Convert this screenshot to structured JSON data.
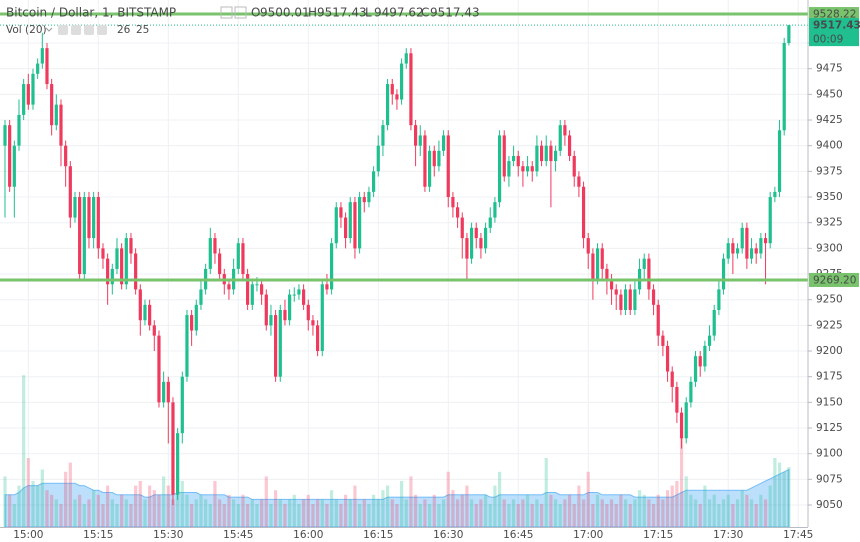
{
  "chart_data": {
    "type": "candlestick",
    "title": "Bitcoin / Dollar, 1, BITSTAMP",
    "ohlc_labels": [
      "O",
      "H",
      "L",
      "C"
    ],
    "volume_label": "Vol (20)",
    "up_color": "#1fbf8f",
    "down_color": "#ef3a5d",
    "ma_color": "#2196f3",
    "open": [
      9400,
      9420,
      9360,
      9400,
      9430,
      9460,
      9440,
      9470,
      9480,
      9495,
      9460,
      9420,
      9440,
      9400,
      9380,
      9330,
      9350,
      9275,
      9350,
      9310,
      9350,
      9300,
      9290,
      9265,
      9280,
      9300,
      9265,
      9310,
      9295,
      9260,
      9230,
      9245,
      9225,
      9215,
      9150,
      9170,
      9150,
      9060,
      9120,
      9175,
      9235,
      9220,
      9245,
      9260,
      9280,
      9310,
      9295,
      9275,
      9265,
      9260,
      9280,
      9305,
      9275,
      9245,
      9265,
      9265,
      9255,
      9225,
      9235,
      9175,
      9240,
      9230,
      9255,
      9255,
      9260,
      9245,
      9230,
      9225,
      9200,
      9265,
      9260,
      9305,
      9340,
      9330,
      9310,
      9345,
      9300,
      9350,
      9345,
      9355,
      9375,
      9400,
      9420,
      9460,
      9450,
      9445,
      9480,
      9490,
      9420,
      9400,
      9410,
      9360,
      9395,
      9380,
      9395,
      9410,
      9350,
      9340,
      9330,
      9310,
      9290,
      9320,
      9310,
      9300,
      9320,
      9330,
      9345,
      9410,
      9370,
      9385,
      9390,
      9380,
      9375,
      9380,
      9375,
      9400,
      9385,
      9400,
      9385,
      9395,
      9420,
      9410,
      9390,
      9370,
      9360,
      9310,
      9295,
      9270,
      9300,
      9280,
      9270,
      9260,
      9255,
      9240,
      9260,
      9240,
      9260,
      9280,
      9290,
      9260,
      9245,
      9215,
      9205,
      9180,
      9165,
      9140,
      9115,
      9150,
      9170,
      9195,
      9185,
      9205,
      9215,
      9240,
      9260,
      9290,
      9305,
      9295,
      9300,
      9320,
      9290,
      9300,
      9295,
      9310,
      9305,
      9350,
      9355,
      9415,
      9500.01
    ],
    "high": [
      9425,
      9425,
      9405,
      9445,
      9465,
      9470,
      9475,
      9485,
      9510,
      9500,
      9465,
      9450,
      9445,
      9405,
      9385,
      9355,
      9355,
      9355,
      9355,
      9355,
      9355,
      9305,
      9295,
      9285,
      9310,
      9305,
      9315,
      9315,
      9300,
      9265,
      9250,
      9250,
      9230,
      9220,
      9180,
      9175,
      9155,
      9125,
      9180,
      9240,
      9240,
      9250,
      9270,
      9285,
      9320,
      9315,
      9300,
      9280,
      9270,
      9290,
      9310,
      9310,
      9280,
      9270,
      9272,
      9270,
      9260,
      9245,
      9240,
      9245,
      9250,
      9260,
      9262,
      9265,
      9265,
      9250,
      9235,
      9230,
      9270,
      9275,
      9310,
      9345,
      9345,
      9335,
      9350,
      9350,
      9355,
      9355,
      9360,
      9380,
      9410,
      9425,
      9465,
      9465,
      9455,
      9485,
      9495,
      9495,
      9425,
      9420,
      9415,
      9400,
      9400,
      9405,
      9415,
      9415,
      9355,
      9345,
      9335,
      9315,
      9325,
      9325,
      9315,
      9325,
      9340,
      9350,
      9415,
      9415,
      9390,
      9400,
      9395,
      9385,
      9390,
      9385,
      9410,
      9405,
      9410,
      9405,
      9400,
      9425,
      9425,
      9415,
      9395,
      9375,
      9365,
      9315,
      9300,
      9305,
      9305,
      9285,
      9275,
      9265,
      9260,
      9265,
      9265,
      9270,
      9290,
      9295,
      9295,
      9265,
      9250,
      9220,
      9210,
      9185,
      9170,
      9145,
      9155,
      9175,
      9200,
      9200,
      9210,
      9225,
      9245,
      9270,
      9295,
      9310,
      9310,
      9305,
      9325,
      9325,
      9310,
      9305,
      9315,
      9315,
      9355,
      9360,
      9425,
      9505,
      9517.43
    ],
    "low": [
      9330,
      9355,
      9330,
      9395,
      9425,
      9435,
      9435,
      9465,
      9475,
      9455,
      9410,
      9415,
      9380,
      9360,
      9320,
      9325,
      9270,
      9270,
      9300,
      9300,
      9290,
      9280,
      9245,
      9255,
      9275,
      9260,
      9260,
      9285,
      9255,
      9215,
      9225,
      9220,
      9200,
      9145,
      9145,
      9110,
      9050,
      9055,
      9110,
      9170,
      9205,
      9215,
      9240,
      9255,
      9275,
      9285,
      9270,
      9255,
      9250,
      9255,
      9275,
      9270,
      9240,
      9240,
      9258,
      9245,
      9220,
      9215,
      9170,
      9170,
      9225,
      9225,
      9248,
      9250,
      9240,
      9220,
      9215,
      9195,
      9195,
      9255,
      9255,
      9300,
      9320,
      9300,
      9305,
      9290,
      9295,
      9335,
      9340,
      9350,
      9370,
      9390,
      9415,
      9440,
      9435,
      9440,
      9475,
      9415,
      9380,
      9390,
      9355,
      9355,
      9370,
      9375,
      9390,
      9340,
      9330,
      9320,
      9290,
      9270,
      9285,
      9300,
      9290,
      9295,
      9315,
      9325,
      9340,
      9365,
      9360,
      9380,
      9370,
      9360,
      9370,
      9365,
      9370,
      9380,
      9380,
      9340,
      9375,
      9390,
      9400,
      9385,
      9360,
      9350,
      9300,
      9280,
      9250,
      9265,
      9270,
      9255,
      9245,
      9240,
      9235,
      9235,
      9235,
      9235,
      9255,
      9270,
      9250,
      9235,
      9205,
      9195,
      9170,
      9150,
      9130,
      9105,
      9110,
      9145,
      9165,
      9175,
      9180,
      9200,
      9210,
      9235,
      9255,
      9285,
      9275,
      9290,
      9295,
      9280,
      9285,
      9285,
      9290,
      9265,
      9300,
      9345,
      9350,
      9410,
      9497.62
    ],
    "close": [
      9420,
      9360,
      9400,
      9430,
      9460,
      9440,
      9470,
      9480,
      9495,
      9460,
      9420,
      9440,
      9400,
      9380,
      9330,
      9350,
      9275,
      9350,
      9310,
      9350,
      9300,
      9290,
      9265,
      9280,
      9300,
      9265,
      9310,
      9295,
      9260,
      9230,
      9245,
      9225,
      9215,
      9150,
      9170,
      9150,
      9060,
      9120,
      9175,
      9235,
      9220,
      9245,
      9260,
      9280,
      9310,
      9295,
      9275,
      9265,
      9260,
      9280,
      9305,
      9275,
      9245,
      9265,
      9265,
      9255,
      9225,
      9235,
      9175,
      9240,
      9230,
      9255,
      9255,
      9260,
      9245,
      9230,
      9225,
      9200,
      9265,
      9260,
      9305,
      9340,
      9330,
      9310,
      9345,
      9300,
      9350,
      9345,
      9355,
      9375,
      9400,
      9420,
      9460,
      9450,
      9445,
      9480,
      9490,
      9420,
      9400,
      9410,
      9360,
      9395,
      9380,
      9395,
      9410,
      9350,
      9340,
      9330,
      9310,
      9290,
      9320,
      9310,
      9300,
      9320,
      9330,
      9345,
      9410,
      9370,
      9385,
      9390,
      9380,
      9375,
      9380,
      9375,
      9400,
      9385,
      9400,
      9385,
      9395,
      9420,
      9410,
      9390,
      9370,
      9360,
      9310,
      9295,
      9270,
      9300,
      9280,
      9270,
      9260,
      9255,
      9240,
      9260,
      9240,
      9260,
      9280,
      9290,
      9260,
      9245,
      9215,
      9205,
      9180,
      9165,
      9140,
      9115,
      9150,
      9170,
      9195,
      9185,
      9205,
      9215,
      9240,
      9260,
      9290,
      9305,
      9295,
      9300,
      9320,
      9290,
      9300,
      9295,
      9310,
      9305,
      9350,
      9355,
      9415,
      9500.01,
      9517.43
    ],
    "volume": [
      22,
      14,
      10,
      18,
      66,
      30,
      20,
      18,
      25,
      16,
      14,
      12,
      10,
      24,
      28,
      12,
      14,
      10,
      12,
      16,
      14,
      10,
      18,
      12,
      10,
      14,
      12,
      10,
      18,
      20,
      12,
      18,
      16,
      14,
      22,
      18,
      12,
      30,
      20,
      14,
      10,
      12,
      14,
      12,
      10,
      20,
      12,
      10,
      14,
      12,
      10,
      14,
      10,
      12,
      10,
      12,
      22,
      10,
      16,
      12,
      10,
      12,
      14,
      10,
      12,
      14,
      10,
      12,
      12,
      10,
      16,
      12,
      10,
      14,
      12,
      18,
      10,
      12,
      10,
      14,
      12,
      16,
      18,
      12,
      10,
      20,
      12,
      22,
      14,
      10,
      12,
      10,
      14,
      10,
      12,
      24,
      16,
      12,
      14,
      18,
      12,
      10,
      12,
      14,
      10,
      18,
      24,
      12,
      10,
      12,
      10,
      12,
      14,
      10,
      12,
      10,
      30,
      14,
      12,
      10,
      12,
      14,
      10,
      18,
      12,
      24,
      10,
      14,
      12,
      10,
      12,
      10,
      14,
      12,
      10,
      12,
      16,
      14,
      12,
      10,
      14,
      12,
      16,
      18,
      20,
      40,
      22,
      14,
      12,
      10,
      18,
      12,
      14,
      10,
      12,
      14,
      10,
      12,
      16,
      14,
      12,
      10,
      14,
      12,
      18,
      30,
      28,
      24,
      26
    ],
    "volume_ma": [
      14,
      14,
      14,
      15,
      17,
      18,
      18,
      18,
      19,
      19,
      19,
      19,
      19,
      19,
      19,
      19,
      18,
      18,
      17,
      16,
      16,
      15,
      15,
      15,
      14,
      14,
      14,
      14,
      14,
      14,
      13,
      13,
      14,
      14,
      14,
      14,
      14,
      15,
      15,
      15,
      15,
      15,
      14,
      14,
      14,
      14,
      14,
      14,
      13,
      13,
      13,
      13,
      13,
      12,
      12,
      12,
      12,
      12,
      12,
      12,
      12,
      12,
      12,
      12,
      12,
      12,
      12,
      12,
      12,
      12,
      12,
      12,
      12,
      12,
      12,
      12,
      12,
      12,
      12,
      12,
      12,
      12,
      13,
      13,
      13,
      13,
      13,
      13,
      13,
      13,
      13,
      13,
      13,
      13,
      13,
      14,
      14,
      14,
      14,
      14,
      14,
      14,
      14,
      14,
      13,
      13,
      14,
      14,
      14,
      14,
      14,
      14,
      14,
      14,
      14,
      14,
      15,
      15,
      15,
      14,
      14,
      14,
      14,
      14,
      14,
      15,
      15,
      15,
      14,
      14,
      14,
      14,
      14,
      14,
      14,
      13,
      13,
      13,
      13,
      13,
      13,
      13,
      13,
      13,
      14,
      15,
      16,
      16,
      16,
      16,
      16,
      16,
      16,
      16,
      16,
      16,
      16,
      16,
      16,
      16,
      17,
      18,
      19,
      20,
      21,
      22,
      23,
      24,
      25
    ],
    "volume_lim": [
      0,
      100
    ],
    "ylim": [
      9028.6,
      9541.9
    ],
    "yticks": [
      9050,
      9075,
      9100,
      9125,
      9150,
      9175,
      9200,
      9225,
      9250,
      9275,
      9300,
      9325,
      9350,
      9375,
      9400,
      9425,
      9450,
      9475,
      9500
    ],
    "xlim": [
      -1.07,
      172.1
    ],
    "xticks": [
      {
        "value": 5,
        "label": "15:00"
      },
      {
        "value": 20,
        "label": "15:15"
      },
      {
        "value": 35,
        "label": "15:30"
      },
      {
        "value": 50,
        "label": "15:45"
      },
      {
        "value": 65,
        "label": "16:00"
      },
      {
        "value": 80,
        "label": "16:15"
      },
      {
        "value": 95,
        "label": "16:30"
      },
      {
        "value": 110,
        "label": "16:45"
      },
      {
        "value": 125,
        "label": "17:00"
      },
      {
        "value": 140,
        "label": "17:15"
      },
      {
        "value": 155,
        "label": "17:30"
      },
      {
        "value": 170,
        "label": "17:45"
      }
    ],
    "grid": true,
    "levels": [
      {
        "value": 9528.22,
        "color": "#78c36c"
      },
      {
        "value": 9269.2,
        "label": "9269.20",
        "color": "#78c36c"
      }
    ],
    "countdown": "00:09"
  }
}
